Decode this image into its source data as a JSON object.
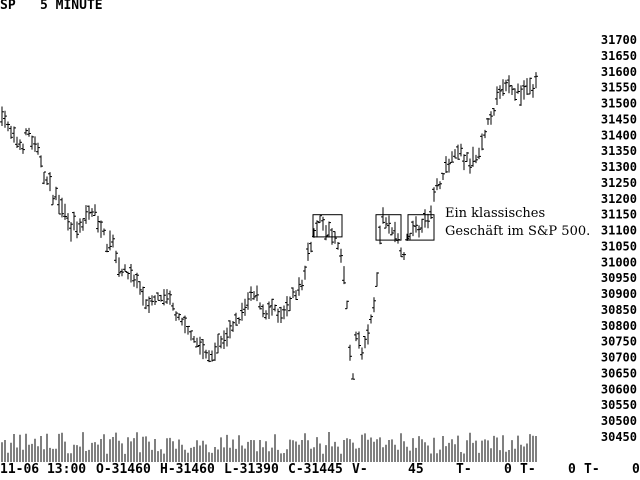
{
  "header": {
    "symbol": "SP",
    "interval": "5 MINUTE"
  },
  "footer": {
    "date_time": "11-06 13:00",
    "open": "O-31460",
    "high": "H-31460",
    "low": "L-31390",
    "close": "C-31445",
    "volume_label": "V-",
    "volume_value": "45",
    "t1": "T-",
    "zero1": "0",
    "t2": "T-",
    "zero2": "0",
    "t3": "T-",
    "zero3": "0"
  },
  "annotation": {
    "line1": "Ein klassisches",
    "line2": "Geschäft im S&P 500."
  },
  "chart_data": {
    "type": "bar",
    "subtype": "ohlc",
    "y_axis": {
      "position": "right",
      "ylim": [
        30430,
        31715
      ],
      "ticks": [
        31700,
        31650,
        31600,
        31550,
        31500,
        31450,
        31400,
        31350,
        31300,
        31250,
        31200,
        31150,
        31100,
        31050,
        31000,
        30950,
        30900,
        30850,
        30800,
        30750,
        30700,
        30650,
        30600,
        30550,
        30500,
        30450
      ]
    },
    "grid": false,
    "price_path": [
      [
        0,
        31500
      ],
      [
        4,
        31460
      ],
      [
        10,
        31400
      ],
      [
        16,
        31380
      ],
      [
        22,
        31360
      ],
      [
        28,
        31420
      ],
      [
        33,
        31370
      ],
      [
        40,
        31330
      ],
      [
        46,
        31260
      ],
      [
        52,
        31220
      ],
      [
        58,
        31200
      ],
      [
        64,
        31170
      ],
      [
        70,
        31120
      ],
      [
        76,
        31100
      ],
      [
        82,
        31110
      ],
      [
        88,
        31150
      ],
      [
        94,
        31160
      ],
      [
        100,
        31120
      ],
      [
        106,
        31060
      ],
      [
        112,
        31080
      ],
      [
        118,
        31000
      ],
      [
        124,
        30970
      ],
      [
        130,
        30960
      ],
      [
        136,
        30940
      ],
      [
        142,
        30900
      ],
      [
        148,
        30860
      ],
      [
        154,
        30870
      ],
      [
        160,
        30890
      ],
      [
        166,
        30880
      ],
      [
        172,
        30870
      ],
      [
        178,
        30820
      ],
      [
        184,
        30790
      ],
      [
        190,
        30780
      ],
      [
        196,
        30760
      ],
      [
        202,
        30720
      ],
      [
        208,
        30700
      ],
      [
        214,
        30720
      ],
      [
        220,
        30750
      ],
      [
        226,
        30760
      ],
      [
        232,
        30780
      ],
      [
        238,
        30820
      ],
      [
        244,
        30850
      ],
      [
        250,
        30890
      ],
      [
        256,
        30900
      ],
      [
        262,
        30860
      ],
      [
        268,
        30840
      ],
      [
        274,
        30850
      ],
      [
        280,
        30820
      ],
      [
        286,
        30840
      ],
      [
        292,
        30880
      ],
      [
        298,
        30920
      ],
      [
        304,
        30950
      ],
      [
        310,
        31060
      ],
      [
        314,
        31090
      ],
      [
        318,
        31120
      ],
      [
        322,
        31130
      ],
      [
        326,
        31100
      ],
      [
        330,
        31090
      ],
      [
        334,
        31080
      ],
      [
        338,
        31050
      ],
      [
        342,
        31000
      ],
      [
        346,
        30920
      ],
      [
        350,
        30700
      ],
      [
        352,
        30600
      ],
      [
        356,
        30780
      ],
      [
        362,
        30710
      ],
      [
        366,
        30750
      ],
      [
        370,
        30790
      ],
      [
        374,
        30870
      ],
      [
        378,
        30980
      ],
      [
        382,
        31170
      ],
      [
        386,
        31130
      ],
      [
        392,
        31110
      ],
      [
        396,
        31090
      ],
      [
        400,
        31050
      ],
      [
        404,
        31030
      ],
      [
        408,
        31080
      ],
      [
        414,
        31120
      ],
      [
        420,
        31100
      ],
      [
        426,
        31140
      ],
      [
        432,
        31180
      ],
      [
        436,
        31220
      ],
      [
        442,
        31280
      ],
      [
        448,
        31300
      ],
      [
        454,
        31330
      ],
      [
        460,
        31350
      ],
      [
        466,
        31320
      ],
      [
        472,
        31310
      ],
      [
        478,
        31330
      ],
      [
        484,
        31380
      ],
      [
        490,
        31460
      ],
      [
        496,
        31500
      ],
      [
        502,
        31540
      ],
      [
        508,
        31570
      ],
      [
        514,
        31550
      ],
      [
        520,
        31530
      ],
      [
        526,
        31550
      ],
      [
        530,
        31560
      ],
      [
        534,
        31520
      ],
      [
        538,
        31620
      ]
    ],
    "annotation_boxes": [
      {
        "x_range": [
          313,
          342
        ],
        "y_range": [
          31080,
          31150
        ]
      },
      {
        "x_range": [
          376,
          401
        ],
        "y_range": [
          31070,
          31150
        ]
      },
      {
        "x_range": [
          408,
          434
        ],
        "y_range": [
          31070,
          31150
        ]
      }
    ]
  }
}
